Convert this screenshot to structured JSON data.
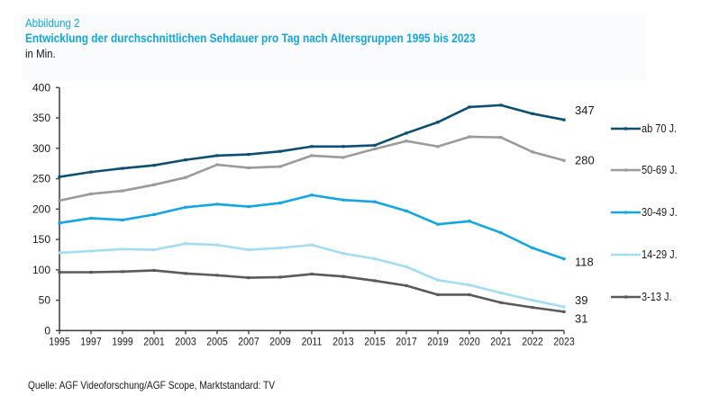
{
  "header": {
    "figure_label": "Abbildung 2",
    "title": "Entwicklung der durchschnittlichen Sehdauer pro Tag nach Altersgruppen 1995 bis 2023",
    "unit": "in Min."
  },
  "footer": {
    "source": "Quelle: AGF Videoforschung/AGF Scope, Marktstandard: TV"
  },
  "chart_data": {
    "type": "line",
    "title": "Entwicklung der durchschnittlichen Sehdauer pro Tag nach Altersgruppen 1995 bis 2023",
    "subtitle": "in Min.",
    "xlabel": "",
    "ylabel": "in Min.",
    "ylim": [
      0,
      400
    ],
    "yticks": [
      0,
      50,
      100,
      150,
      200,
      250,
      300,
      350,
      400
    ],
    "grid": false,
    "legend_position": "right",
    "x": [
      "1995",
      "1997",
      "1999",
      "2001",
      "2003",
      "2005",
      "2007",
      "2009",
      "2011",
      "2013",
      "2015",
      "2017",
      "2019",
      "2020",
      "2021",
      "2022",
      "2023"
    ],
    "series": [
      {
        "name": "ab 70 J.",
        "color": "#0d4f73",
        "end_label": "347",
        "values": [
          253,
          261,
          267,
          272,
          281,
          288,
          290,
          295,
          303,
          303,
          305,
          325,
          343,
          368,
          371,
          357,
          347
        ]
      },
      {
        "name": "50-69 J.",
        "color": "#9b9b9b",
        "end_label": "280",
        "values": [
          214,
          225,
          230,
          240,
          252,
          273,
          268,
          270,
          288,
          285,
          299,
          312,
          303,
          319,
          318,
          294,
          280
        ]
      },
      {
        "name": "30-49 J.",
        "color": "#12a7e0",
        "end_label": "118",
        "values": [
          177,
          185,
          182,
          191,
          203,
          208,
          204,
          210,
          223,
          215,
          212,
          197,
          175,
          180,
          161,
          136,
          118
        ]
      },
      {
        "name": "14-29  J.",
        "color": "#a3dcf5",
        "end_label": "39",
        "values": [
          128,
          131,
          134,
          133,
          143,
          141,
          133,
          136,
          141,
          127,
          118,
          105,
          83,
          75,
          62,
          50,
          39
        ]
      },
      {
        "name": "3-13 J.",
        "color": "#5a5a5c",
        "end_label": "31",
        "values": [
          96,
          96,
          97,
          99,
          94,
          91,
          87,
          88,
          93,
          89,
          82,
          74,
          59,
          59,
          46,
          38,
          31
        ]
      }
    ]
  }
}
